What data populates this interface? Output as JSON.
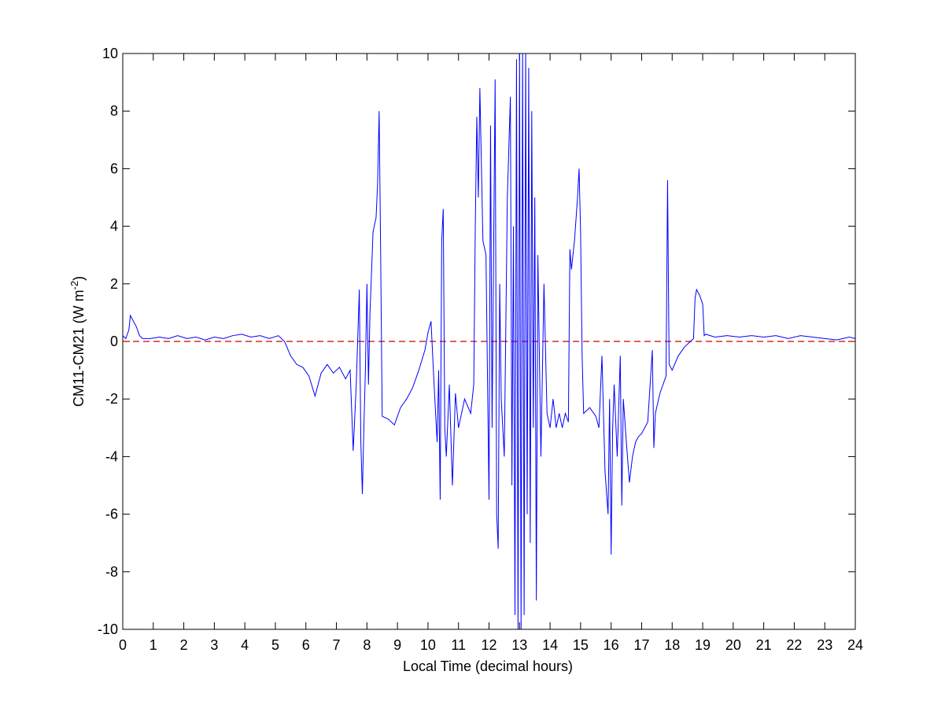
{
  "chart_data": {
    "type": "line",
    "xlabel": "Local Time (decimal hours)",
    "ylabel": {
      "text": "CM11-CM21 (W m",
      "sup": "-2",
      "end": ")"
    },
    "xlim": [
      0,
      24
    ],
    "xticks": [
      0,
      1,
      2,
      3,
      4,
      5,
      6,
      7,
      8,
      9,
      10,
      11,
      12,
      13,
      14,
      15,
      16,
      17,
      18,
      19,
      20,
      21,
      22,
      23,
      24
    ],
    "ylim": [
      -10,
      10
    ],
    "yticks": [
      -10,
      -8,
      -6,
      -4,
      -2,
      0,
      2,
      4,
      6,
      8,
      10
    ],
    "reference_line": {
      "value": 0,
      "color": "#cc0000"
    },
    "x": [
      0,
      0.1,
      0.2,
      0.25,
      0.35,
      0.45,
      0.55,
      0.65,
      0.9,
      1.2,
      1.5,
      1.8,
      2.1,
      2.4,
      2.7,
      3.0,
      3.3,
      3.6,
      3.9,
      4.2,
      4.5,
      4.8,
      5.1,
      5.3,
      5.5,
      5.7,
      5.9,
      6.1,
      6.3,
      6.5,
      6.7,
      6.9,
      7.1,
      7.3,
      7.45,
      7.55,
      7.65,
      7.75,
      7.8,
      7.85,
      7.9,
      7.95,
      8.0,
      8.05,
      8.1,
      8.2,
      8.3,
      8.35,
      8.4,
      8.45,
      8.5,
      8.7,
      8.9,
      9.1,
      9.3,
      9.5,
      9.7,
      9.9,
      10.0,
      10.1,
      10.2,
      10.3,
      10.35,
      10.4,
      10.45,
      10.5,
      10.55,
      10.6,
      10.7,
      10.8,
      10.9,
      11.0,
      11.2,
      11.4,
      11.5,
      11.55,
      11.6,
      11.65,
      11.7,
      11.8,
      11.9,
      12.0,
      12.05,
      12.1,
      12.2,
      12.25,
      12.3,
      12.35,
      12.4,
      12.5,
      12.6,
      12.7,
      12.75,
      12.8,
      12.85,
      12.9,
      12.95,
      13.0,
      13.05,
      13.1,
      13.15,
      13.2,
      13.25,
      13.3,
      13.35,
      13.4,
      13.45,
      13.5,
      13.55,
      13.6,
      13.7,
      13.8,
      13.9,
      14.0,
      14.1,
      14.2,
      14.3,
      14.4,
      14.5,
      14.6,
      14.65,
      14.7,
      14.8,
      14.9,
      14.95,
      15.0,
      15.05,
      15.1,
      15.3,
      15.5,
      15.6,
      15.7,
      15.8,
      15.9,
      15.95,
      16.0,
      16.05,
      16.1,
      16.2,
      16.3,
      16.35,
      16.4,
      16.5,
      16.6,
      16.7,
      16.8,
      16.9,
      17.0,
      17.2,
      17.35,
      17.4,
      17.45,
      17.6,
      17.8,
      17.85,
      17.9,
      18.0,
      18.2,
      18.4,
      18.6,
      18.7,
      18.75,
      18.8,
      18.9,
      19.0,
      19.05,
      19.1,
      19.4,
      19.8,
      20.2,
      20.6,
      21.0,
      21.4,
      21.8,
      22.2,
      22.6,
      23.0,
      23.4,
      23.8,
      24.0
    ],
    "series": [
      {
        "color": "#0000ff",
        "values": [
          0.2,
          0.1,
          0.4,
          0.9,
          0.7,
          0.5,
          0.2,
          0.1,
          0.1,
          0.15,
          0.1,
          0.2,
          0.1,
          0.15,
          0.05,
          0.15,
          0.1,
          0.2,
          0.25,
          0.15,
          0.2,
          0.1,
          0.2,
          0,
          -0.5,
          -0.8,
          -0.9,
          -1.2,
          -1.9,
          -1.1,
          -0.8,
          -1.1,
          -0.9,
          -1.3,
          -1.0,
          -3.8,
          -1.5,
          1.8,
          -3.5,
          -5.3,
          -3.0,
          -1.0,
          2.0,
          -1.5,
          1.0,
          3.8,
          4.3,
          5.5,
          8.0,
          3.0,
          -2.6,
          -2.7,
          -2.9,
          -2.3,
          -2.0,
          -1.6,
          -1.0,
          -0.3,
          0.3,
          0.7,
          -1.5,
          -3.5,
          -1.0,
          -5.5,
          3.5,
          4.6,
          -3.0,
          -4.0,
          -1.5,
          -5.0,
          -1.8,
          -3.0,
          -2.0,
          -2.5,
          -1.5,
          4.0,
          7.8,
          5.0,
          8.8,
          3.5,
          3.0,
          -5.5,
          7.5,
          -3.0,
          9.1,
          -6.0,
          -7.2,
          2.0,
          -2.0,
          -4.0,
          5.0,
          8.5,
          -5.0,
          4.0,
          -9.5,
          9.8,
          -10,
          10,
          -10,
          10,
          -9.5,
          10,
          -6.0,
          9.5,
          -7.0,
          8.0,
          -3.0,
          5.0,
          -9.0,
          3.0,
          -4.0,
          2.0,
          -2.5,
          -3.0,
          -2.0,
          -3.0,
          -2.5,
          -3.0,
          -2.5,
          -2.8,
          3.2,
          2.5,
          3.5,
          5.0,
          6.0,
          3.8,
          -0.5,
          -2.5,
          -2.3,
          -2.6,
          -3.0,
          -0.5,
          -4.5,
          -6.0,
          -2.0,
          -7.4,
          -3.0,
          -1.5,
          -4.0,
          -0.5,
          -5.7,
          -2.0,
          -3.5,
          -4.9,
          -4.0,
          -3.5,
          -3.3,
          -3.2,
          -2.8,
          -0.3,
          -3.7,
          -2.5,
          -1.8,
          -1.2,
          5.6,
          -0.8,
          -1.0,
          -0.5,
          -0.2,
          0,
          0.1,
          1.5,
          1.8,
          1.6,
          1.3,
          0.2,
          0.25,
          0.15,
          0.2,
          0.15,
          0.2,
          0.15,
          0.2,
          0.1,
          0.2,
          0.15,
          0.1,
          0.05,
          0.15,
          0.1
        ]
      }
    ]
  }
}
